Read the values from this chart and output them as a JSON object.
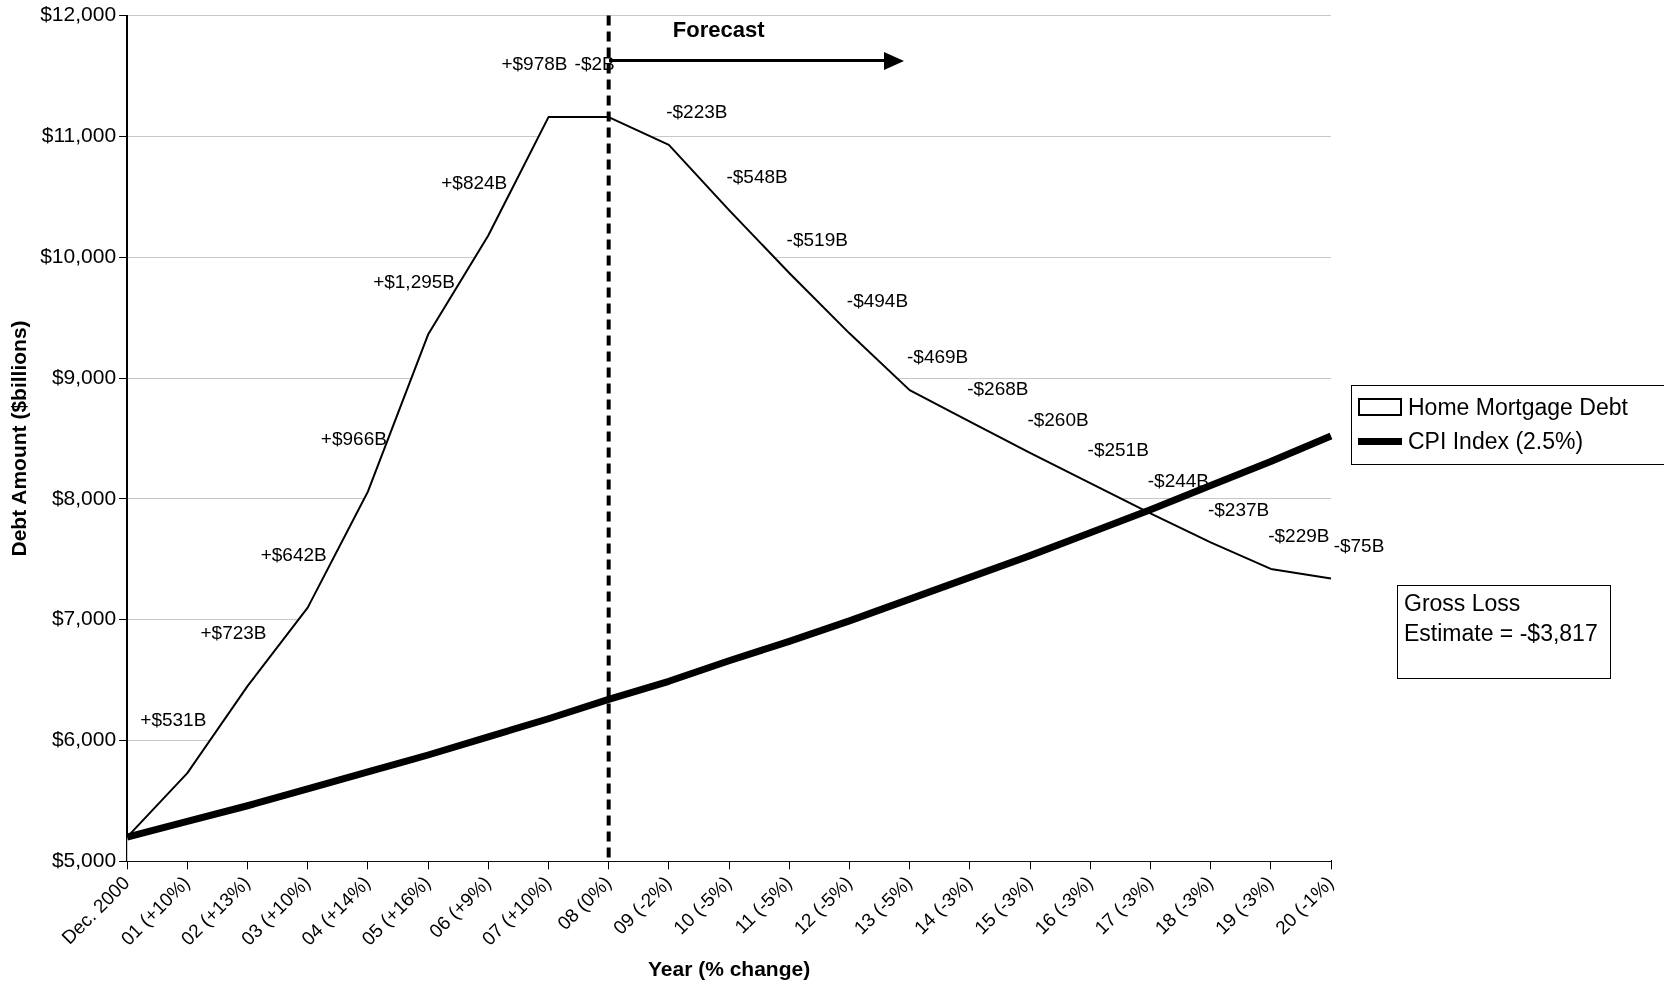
{
  "chart_data": {
    "type": "area",
    "xlabel": "Year (% change)",
    "ylabel": "Debt Amount ($billions)",
    "categories": [
      "Dec. 2000",
      "01 (+10%)",
      "02 (+13%)",
      "03 (+10%)",
      "04 (+14%)",
      "05 (+16%)",
      "06 (+9%)",
      "07 (+10%)",
      "08 (0%)",
      "09 (-2%)",
      "10 (-5%)",
      "11 (-5%)",
      "12 (-5%)",
      "13 (-5%)",
      "14 (-3%)",
      "15 (-3%)",
      "16 (-3%)",
      "17 (-3%)",
      "18 (-3%)",
      "19 (-3%)",
      "20 (-1%)"
    ],
    "series": [
      {
        "name": "Home Mortgage Debt",
        "color": "#000000",
        "values": [
          5200,
          5730,
          6450,
          7100,
          8060,
          9360,
          10180,
          11160,
          11160,
          10930,
          10390,
          9870,
          9370,
          8900,
          8640,
          8380,
          8130,
          7880,
          7640,
          7420,
          7340
        ]
      },
      {
        "name": "CPI Index (2.5%)",
        "type": "line",
        "color": "#000000",
        "values": [
          5200,
          5330,
          5460,
          5600,
          5740,
          5880,
          6030,
          6180,
          6340,
          6490,
          6660,
          6820,
          6990,
          7170,
          7350,
          7530,
          7720,
          7910,
          8110,
          8310,
          8520
        ]
      }
    ],
    "ylim": [
      5000,
      12000
    ],
    "yticks": [
      {
        "value": 5000,
        "label": "$5,000"
      },
      {
        "value": 6000,
        "label": "$6,000"
      },
      {
        "value": 7000,
        "label": "$7,000"
      },
      {
        "value": 8000,
        "label": "$8,000"
      },
      {
        "value": 9000,
        "label": "$9,000"
      },
      {
        "value": 10000,
        "label": "$10,000"
      },
      {
        "value": 11000,
        "label": "$11,000"
      },
      {
        "value": 12000,
        "label": "$12,000"
      }
    ],
    "ref_lines": [
      {
        "axis": "x",
        "value": "08 (0%)",
        "label": "Forecast",
        "line_style": "dashed",
        "color": "#000000"
      }
    ],
    "annotations": [
      "Gross Loss Estimate = -$3,817",
      {
        "text": "+$531B",
        "x": "01 (+10%)",
        "y": 5730
      },
      {
        "text": "+$723B",
        "x": "02 (+13%)",
        "y": 6450
      },
      {
        "text": "+$642B",
        "x": "03 (+10%)",
        "y": 7100
      },
      {
        "text": "+$966B",
        "x": "04 (+14%)",
        "y": 8060
      },
      {
        "text": "+$1,295B",
        "x": "05 (+16%)",
        "y": 9360
      },
      {
        "text": "+$824B",
        "x": "06 (+9%)",
        "y": 10180
      },
      {
        "text": "+$978B",
        "x": "07 (+10%)",
        "y": 11160
      },
      {
        "text": "-$2B",
        "x": "08 (0%)",
        "y": 11160
      },
      {
        "text": "-$223B",
        "x": "09 (-2%)",
        "y": 10930
      },
      {
        "text": "-$548B",
        "x": "10 (-5%)",
        "y": 10390
      },
      {
        "text": "-$519B",
        "x": "11 (-5%)",
        "y": 9870
      },
      {
        "text": "-$494B",
        "x": "12 (-5%)",
        "y": 9370
      },
      {
        "text": "-$469B",
        "x": "13 (-5%)",
        "y": 8900
      },
      {
        "text": "-$268B",
        "x": "14 (-3%)",
        "y": 8640
      },
      {
        "text": "-$260B",
        "x": "15 (-3%)",
        "y": 8380
      },
      {
        "text": "-$251B",
        "x": "16 (-3%)",
        "y": 8130
      },
      {
        "text": "-$244B",
        "x": "17 (-3%)",
        "y": 7880
      },
      {
        "text": "-$237B",
        "x": "18 (-3%)",
        "y": 7640
      },
      {
        "text": "-$229B",
        "x": "19 (-3%)",
        "y": 7420
      },
      {
        "text": "-$75B",
        "x": "20 (-1%)",
        "y": 7340
      }
    ],
    "grid": "y",
    "legend": "right",
    "marker": "none"
  }
}
